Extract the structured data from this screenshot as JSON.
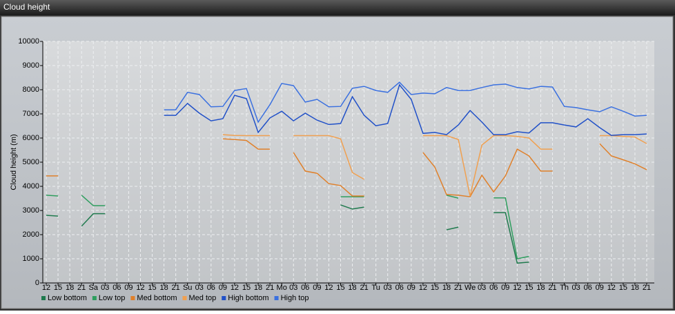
{
  "chart_data": {
    "type": "line",
    "title": "Cloud height",
    "ylabel": "Cloud height (m)",
    "categories": [
      "12",
      "15",
      "18",
      "21",
      "Sa",
      "03",
      "06",
      "09",
      "12",
      "15",
      "18",
      "21",
      "Su",
      "03",
      "06",
      "09",
      "12",
      "15",
      "18",
      "21",
      "Mo",
      "03",
      "06",
      "09",
      "12",
      "15",
      "18",
      "21",
      "Tu",
      "03",
      "06",
      "09",
      "12",
      "15",
      "18",
      "21",
      "We",
      "03",
      "06",
      "09",
      "12",
      "15",
      "18",
      "21",
      "Th",
      "03",
      "06",
      "09",
      "12",
      "15",
      "18",
      "21"
    ],
    "ylim": [
      0,
      10000
    ],
    "yticks": [
      0,
      1000,
      2000,
      3000,
      4000,
      5000,
      6000,
      7000,
      8000,
      9000,
      10000
    ],
    "grid": true,
    "series": [
      {
        "name": "Low bottom",
        "color": "#1f7a4d",
        "values": [
          2800,
          2770,
          null,
          2350,
          2870,
          2870,
          null,
          null,
          null,
          null,
          null,
          null,
          null,
          null,
          null,
          null,
          null,
          null,
          null,
          null,
          null,
          null,
          null,
          null,
          null,
          3230,
          3060,
          3140,
          null,
          null,
          null,
          null,
          null,
          null,
          2200,
          2310,
          null,
          null,
          2910,
          2910,
          820,
          860,
          null,
          null,
          null,
          null,
          null,
          null,
          null,
          null,
          null,
          null
        ]
      },
      {
        "name": "Low top",
        "color": "#2e9e5e",
        "values": [
          3630,
          3600,
          null,
          3630,
          3200,
          3200,
          null,
          null,
          null,
          null,
          null,
          null,
          null,
          null,
          null,
          null,
          null,
          null,
          null,
          null,
          null,
          null,
          null,
          null,
          null,
          3570,
          3570,
          3570,
          null,
          null,
          null,
          null,
          null,
          null,
          3630,
          3510,
          null,
          null,
          3520,
          3520,
          1000,
          1100,
          null,
          null,
          null,
          null,
          null,
          null,
          null,
          null,
          null,
          null
        ]
      },
      {
        "name": "Med bottom",
        "color": "#e0802a",
        "values": [
          4430,
          4430,
          null,
          null,
          null,
          null,
          null,
          null,
          null,
          null,
          null,
          null,
          null,
          null,
          null,
          5970,
          5940,
          5900,
          5540,
          5540,
          null,
          5400,
          4630,
          4540,
          4110,
          4030,
          3600,
          3600,
          null,
          null,
          null,
          null,
          5400,
          4800,
          3660,
          3630,
          3570,
          4460,
          3770,
          4430,
          5540,
          5260,
          4630,
          4630,
          null,
          null,
          null,
          5770,
          5260,
          5100,
          4930,
          4690
        ]
      },
      {
        "name": "Med top",
        "color": "#f0a050",
        "values": [
          null,
          null,
          null,
          null,
          null,
          null,
          null,
          null,
          null,
          null,
          null,
          null,
          null,
          null,
          null,
          6140,
          6110,
          6100,
          6100,
          6100,
          null,
          6100,
          6100,
          6100,
          6100,
          5970,
          4570,
          4290,
          null,
          null,
          null,
          null,
          6100,
          6100,
          6100,
          5940,
          3600,
          5710,
          6100,
          6100,
          6070,
          6000,
          5540,
          5540,
          null,
          null,
          null,
          6100,
          6100,
          6070,
          6040,
          5770
        ]
      },
      {
        "name": "High bottom",
        "color": "#2050c8",
        "values": [
          null,
          null,
          null,
          null,
          null,
          null,
          null,
          null,
          null,
          null,
          6940,
          6940,
          7430,
          7030,
          6710,
          6800,
          7770,
          7630,
          6230,
          6830,
          7110,
          6710,
          7030,
          6740,
          6560,
          6600,
          7710,
          6940,
          6510,
          6600,
          8200,
          7600,
          6190,
          6230,
          6140,
          6540,
          7140,
          6660,
          6140,
          6140,
          6260,
          6210,
          6630,
          6630,
          6540,
          6460,
          6800,
          6430,
          6110,
          6140,
          6140,
          6170
        ]
      },
      {
        "name": "High top",
        "color": "#3a70e0",
        "values": [
          null,
          null,
          null,
          null,
          null,
          null,
          null,
          null,
          null,
          null,
          7170,
          7170,
          7890,
          7800,
          7290,
          7310,
          7970,
          8050,
          6660,
          7380,
          8260,
          8170,
          7490,
          7600,
          7290,
          7310,
          8060,
          8140,
          7970,
          7890,
          8310,
          7800,
          7860,
          7830,
          8090,
          7970,
          7970,
          8090,
          8200,
          8230,
          8090,
          8030,
          8140,
          8110,
          7310,
          7260,
          7170,
          7090,
          7290,
          7110,
          6910,
          6940
        ]
      }
    ]
  }
}
